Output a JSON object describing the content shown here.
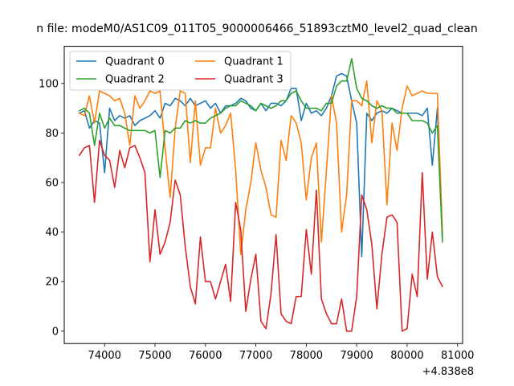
{
  "chart_data": {
    "type": "line",
    "title": "n file: modeM0/AS1C09_011T05_9000006466_51893cztM0_level2_quad_clean",
    "xlabel": "",
    "ylabel": "",
    "x_offset_label": "+4.838e8",
    "xlim": [
      73200,
      81100
    ],
    "ylim": [
      -5,
      115
    ],
    "xticks": [
      74000,
      75000,
      76000,
      77000,
      78000,
      79000,
      80000,
      81000
    ],
    "xtick_labels": [
      "74000",
      "75000",
      "76000",
      "77000",
      "78000",
      "79000",
      "80000",
      "81000"
    ],
    "yticks": [
      0,
      20,
      40,
      60,
      80,
      100
    ],
    "ytick_labels": [
      "0",
      "20",
      "40",
      "60",
      "80",
      "100"
    ],
    "legend": {
      "placement": "top-left",
      "columns": 2
    },
    "grid": false,
    "x": [
      73500,
      73600,
      73700,
      73800,
      73900,
      74000,
      74100,
      74200,
      74300,
      74400,
      74500,
      74600,
      74700,
      74800,
      74900,
      75000,
      75100,
      75200,
      75300,
      75400,
      75500,
      75600,
      75700,
      75800,
      75900,
      76000,
      76100,
      76200,
      76300,
      76400,
      76500,
      76600,
      76700,
      76800,
      76900,
      77000,
      77100,
      77200,
      77300,
      77400,
      77500,
      77600,
      77700,
      77800,
      77900,
      78000,
      78100,
      78200,
      78300,
      78400,
      78500,
      78600,
      78700,
      78800,
      78900,
      79000,
      79100,
      79200,
      79300,
      79400,
      79500,
      79600,
      79700,
      79800,
      79900,
      80000,
      80100,
      80200,
      80300,
      80400,
      80500,
      80600,
      80700
    ],
    "series": [
      {
        "name": "Quadrant 0",
        "color": "#1f77b4",
        "values": [
          88,
          89,
          82,
          85,
          84,
          64,
          90,
          85,
          87,
          86,
          87,
          83,
          85,
          86,
          87,
          89,
          86,
          92,
          91,
          94,
          93,
          91,
          94,
          91,
          92,
          93,
          90,
          92,
          88,
          91,
          91,
          92,
          94,
          93,
          90,
          89,
          92,
          89,
          92,
          92,
          91,
          93,
          98,
          98,
          85,
          92,
          88,
          89,
          87,
          90,
          95,
          103,
          104,
          103,
          93,
          84,
          30,
          88,
          85,
          88,
          89,
          88,
          90,
          89,
          88,
          88,
          88,
          88,
          87,
          90,
          67,
          90,
          38
        ]
      },
      {
        "name": "Quadrant 1",
        "color": "#ff7f0e",
        "values": [
          88,
          87,
          95,
          84,
          97,
          96,
          95,
          93,
          94,
          88,
          75,
          95,
          90,
          93,
          97,
          96,
          97,
          74,
          54,
          82,
          97,
          96,
          68,
          93,
          67,
          74,
          74,
          90,
          80,
          83,
          88,
          65,
          31,
          49,
          60,
          76,
          65,
          58,
          47,
          46,
          77,
          69,
          87,
          84,
          76,
          53,
          70,
          76,
          36,
          65,
          95,
          84,
          40,
          55,
          93,
          93,
          91,
          101,
          76,
          93,
          89,
          51,
          84,
          73,
          90,
          99,
          95,
          96,
          97,
          96,
          96,
          96,
          40
        ]
      },
      {
        "name": "Quadrant 2",
        "color": "#2ca02c",
        "values": [
          89,
          90,
          88,
          75,
          88,
          82,
          86,
          83,
          83,
          82,
          81,
          81,
          81,
          81,
          80,
          81,
          62,
          81,
          80,
          82,
          82,
          85,
          84,
          85,
          84,
          84,
          86,
          87,
          88,
          90,
          91,
          91,
          93,
          92,
          91,
          89,
          92,
          91,
          90,
          91,
          93,
          93,
          96,
          97,
          93,
          90,
          90,
          90,
          89,
          92,
          92,
          99,
          101,
          101,
          110,
          98,
          94,
          93,
          91,
          90,
          91,
          90,
          90,
          88,
          88,
          88,
          85,
          85,
          85,
          84,
          80,
          83,
          36
        ]
      },
      {
        "name": "Quadrant 3",
        "color": "#d62728",
        "values": [
          71,
          74,
          75,
          52,
          77,
          71,
          69,
          58,
          73,
          66,
          74,
          75,
          70,
          64,
          28,
          49,
          31,
          36,
          44,
          61,
          55,
          34,
          18,
          11,
          38,
          20,
          20,
          13,
          20,
          27,
          12,
          52,
          41,
          8,
          21,
          31,
          4,
          1,
          15,
          39,
          7,
          4,
          3,
          14,
          14,
          41,
          23,
          57,
          13,
          7,
          3,
          3,
          13,
          0,
          0,
          14,
          55,
          49,
          35,
          9,
          31,
          46,
          47,
          44,
          0,
          1,
          23,
          14,
          64,
          21,
          40,
          22,
          18
        ]
      }
    ]
  }
}
